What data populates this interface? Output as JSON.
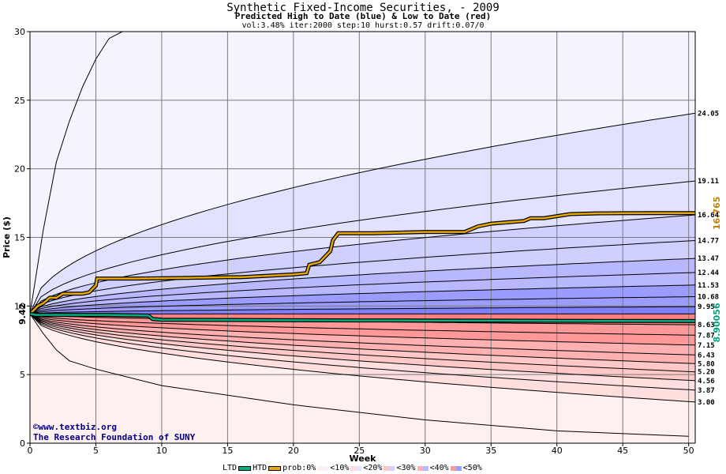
{
  "titles": {
    "line1": "Synthetic Fixed-Income Securities,  - 2009",
    "line2": "Predicted High to Date (blue) &  Low to Date (red)",
    "line3": "vol:3.48% iter:2000 step:10 hurst:0.57 drift:0.07/0"
  },
  "watermark": {
    "line1": "©www.textbiz.org",
    "line2": "The Research Foundation of SUNY"
  },
  "legend": {
    "ltd": "LTD",
    "htd": "HTD",
    "prob": "prob:0%",
    "b10": "<10%",
    "b20": "<20%",
    "b30": "<30%",
    "b40": "<40%",
    "b50": "<50%"
  },
  "colors": {
    "ltd_line": "#00b080",
    "htd_line": "#e8a800",
    "blue_bands": [
      "#f4f4ff",
      "#e2e2ff",
      "#d0d0ff",
      "#b8b8ff",
      "#9c9cff",
      "#8080ff"
    ],
    "red_bands": [
      "#fff0f0",
      "#ffdede",
      "#ffc8c8",
      "#ffb0b0",
      "#ff9898",
      "#ff8080"
    ]
  },
  "chart_data": {
    "type": "area",
    "xlabel": "Week",
    "ylabel": "Price ($)",
    "xlim": [
      0,
      50.5
    ],
    "ylim": [
      0,
      30
    ],
    "x_ticks": [
      0,
      5,
      10,
      15,
      20,
      25,
      30,
      35,
      40,
      45,
      50
    ],
    "y_ticks": [
      0,
      5,
      10,
      15,
      20,
      25,
      30
    ],
    "grid": true,
    "start_price": 9.42,
    "start_label": "9.42",
    "upper_band_end_labels": [
      "24.05",
      "19.11",
      "16.64",
      "14.77",
      "13.47",
      "12.44",
      "11.53",
      "10.68",
      "9.95"
    ],
    "lower_band_end_labels": [
      "8.63",
      "7.87",
      "7.15",
      "6.43",
      "5.80",
      "5.20",
      "4.56",
      "3.87",
      "3.00"
    ],
    "outer_upper": {
      "x": [
        0,
        1,
        2,
        3,
        4,
        5,
        6,
        7
      ],
      "y": [
        9.42,
        15.5,
        20.5,
        23.5,
        26,
        28,
        29.5,
        30
      ]
    },
    "outer_lower": {
      "x": [
        0,
        1,
        2,
        3,
        5,
        10,
        20,
        30,
        40,
        50
      ],
      "y": [
        9.42,
        8.0,
        6.8,
        6.0,
        5.4,
        4.2,
        2.8,
        1.7,
        0.9,
        0.5
      ]
    },
    "htd_series": {
      "name": "HTD",
      "final_label": "16.765",
      "x": [
        0,
        0.6,
        1,
        1.5,
        2,
        2.5,
        3,
        4,
        4.5,
        5,
        5.1,
        8,
        12,
        15,
        16,
        20,
        21,
        21.2,
        22,
        22.8,
        23,
        23.4,
        26,
        30,
        33,
        34,
        35,
        37.5,
        38,
        39,
        41,
        43,
        45,
        47,
        50.5
      ],
      "y": [
        9.42,
        10.0,
        10.2,
        10.6,
        10.6,
        10.9,
        10.9,
        10.9,
        11.0,
        11.5,
        12.0,
        12.0,
        12.05,
        12.1,
        12.1,
        12.3,
        12.4,
        13.0,
        13.2,
        14.0,
        14.8,
        15.3,
        15.3,
        15.4,
        15.4,
        15.8,
        16.0,
        16.2,
        16.4,
        16.4,
        16.7,
        16.75,
        16.76,
        16.77,
        16.77
      ]
    },
    "ltd_series": {
      "name": "LTD",
      "final_label": "8.90056",
      "x": [
        0,
        0.5,
        1,
        3,
        6,
        9,
        9.3,
        10,
        15,
        20,
        25,
        30,
        35,
        40,
        45,
        50.5
      ],
      "y": [
        9.42,
        9.35,
        9.35,
        9.35,
        9.35,
        9.3,
        9.05,
        9.0,
        8.98,
        8.96,
        8.95,
        8.94,
        8.93,
        8.92,
        8.91,
        8.9
      ]
    }
  }
}
